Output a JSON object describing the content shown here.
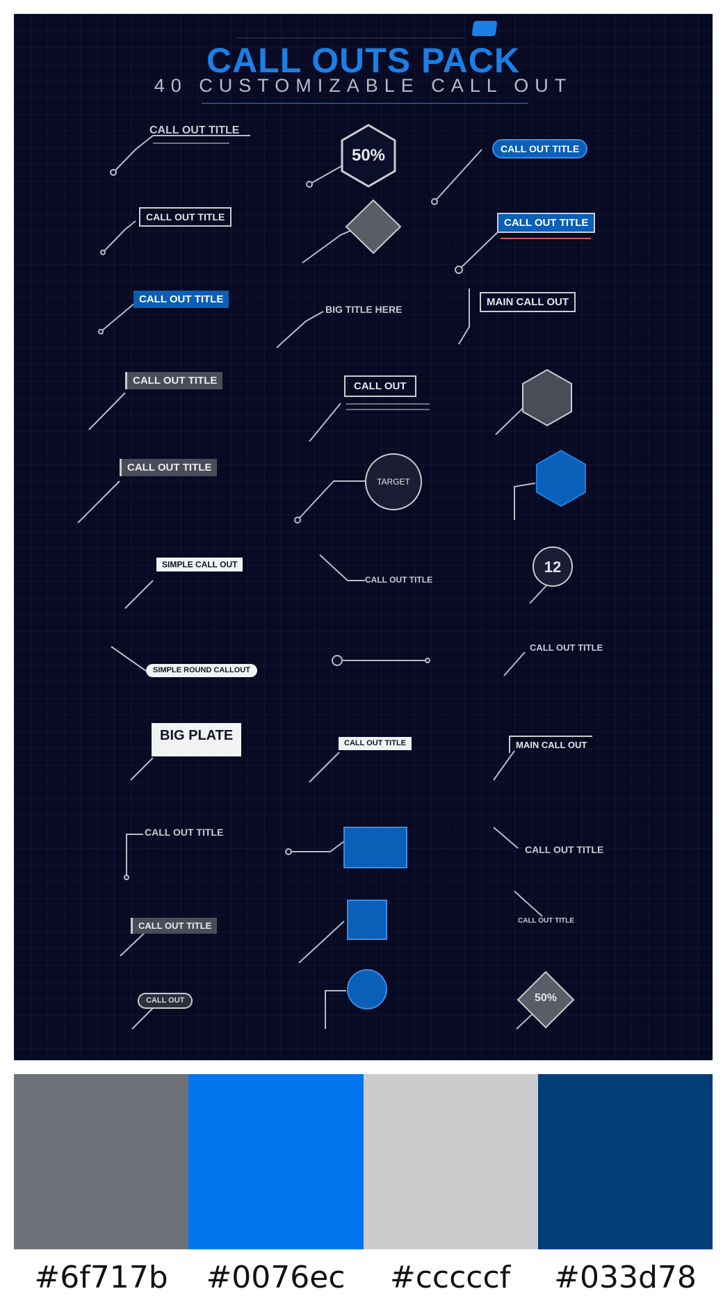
{
  "poster": {
    "title": "CALL OUTS PACK",
    "subtitle": "40 CUSTOMIZABLE CALL OUT",
    "callouts": {
      "c1": "CALL OUT TITLE",
      "c2": "50%",
      "c3": "CALL OUT TITLE",
      "c4": "CALL OUT TITLE",
      "c5": "CALL OUT TITLE",
      "c6": "CALL OUT TITLE",
      "c7": "BIG TITLE HERE",
      "c8": "MAIN CALL OUT",
      "c9": "CALL OUT TITLE",
      "c10": "CALL OUT",
      "c11": "CALL OUT TITLE",
      "c12": "TARGET",
      "c13": "SIMPLE CALL OUT",
      "c14": "CALL OUT TITLE",
      "c15": "12",
      "c16": "SIMPLE ROUND CALLOUT",
      "c17": "CALL OUT TITLE",
      "c18": "BIG PLATE",
      "c19": "CALL OUT TITLE",
      "c20": "MAIN CALL OUT",
      "c21": "CALL OUT TITLE",
      "c22": "CALL OUT TITLE",
      "c23": "CALL OUT TITLE",
      "c24": "CALL OUT TITLE",
      "c25": "CALL OUT",
      "c26": "50%"
    }
  },
  "palette": [
    {
      "label": "#6f717b",
      "color": "#6f717b"
    },
    {
      "label": "#0076ec",
      "color": "#0076ec"
    },
    {
      "label": "#cccccf",
      "color": "#cccccf"
    },
    {
      "label": "#033d78",
      "color": "#033d78"
    }
  ]
}
